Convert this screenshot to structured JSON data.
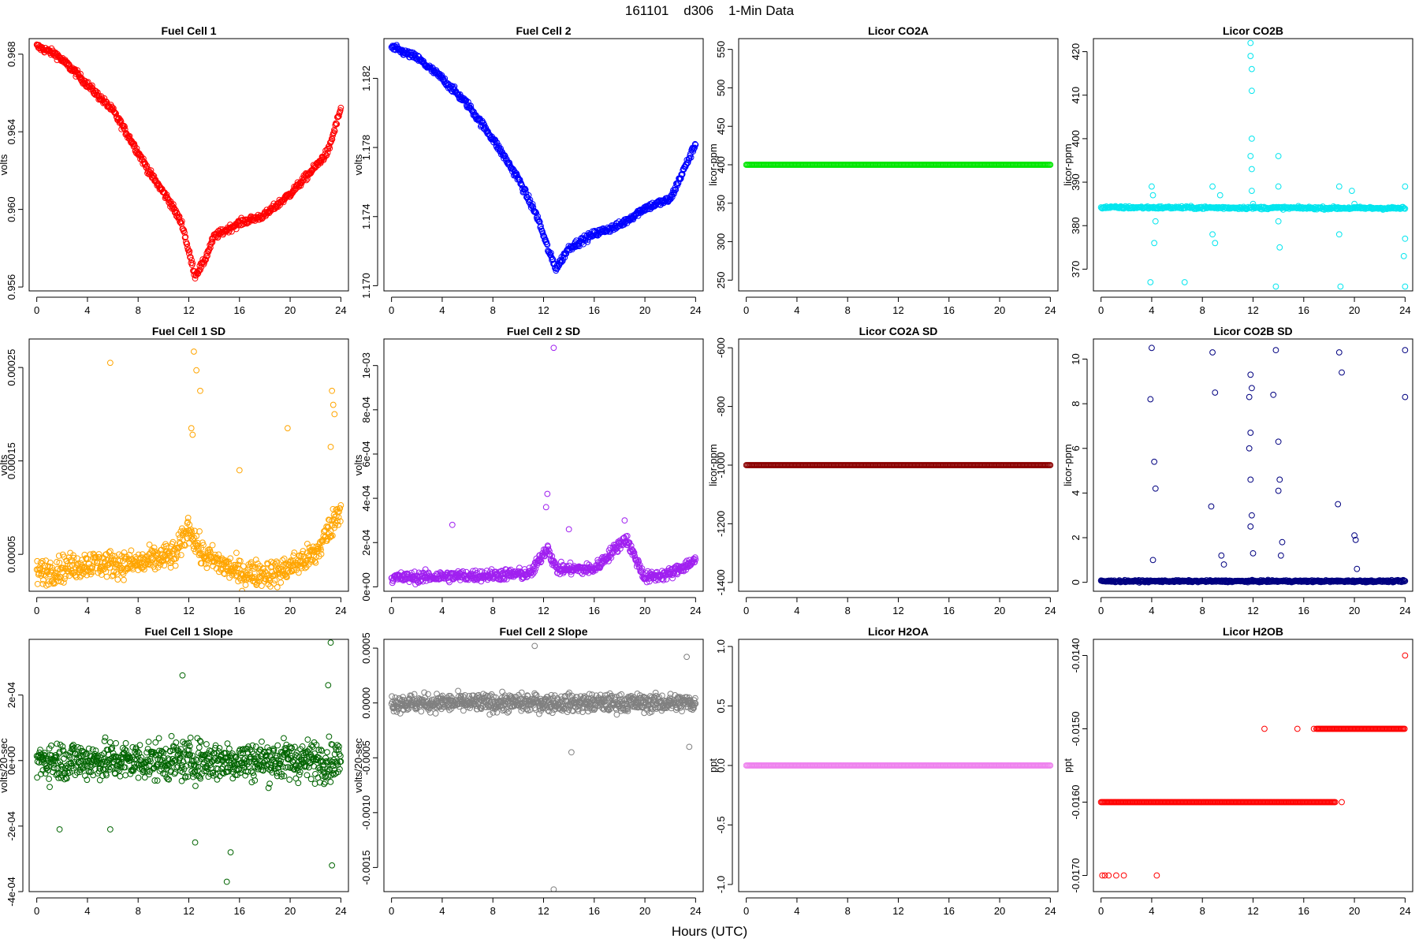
{
  "figure": {
    "title": "161101    d306    1-Min Data",
    "xlabel": "Hours (UTC)"
  },
  "chart_data": [
    {
      "id": "fc1",
      "type": "scatter",
      "title": "Fuel Cell 1",
      "xlabel": "",
      "ylabel": "volts",
      "color": "#ff0000",
      "xlim": [
        0,
        24
      ],
      "xticks": [
        0,
        4,
        8,
        12,
        16,
        20,
        24
      ],
      "ylim": [
        0.9558,
        0.9688
      ],
      "yticks": [
        0.956,
        0.96,
        0.964,
        0.968
      ],
      "ytick_labels": [
        "0.956",
        "0.960",
        "0.964",
        "0.968"
      ],
      "trend": [
        [
          0,
          0.9684
        ],
        [
          1.5,
          0.968
        ],
        [
          3,
          0.9671
        ],
        [
          4.5,
          0.9661
        ],
        [
          6,
          0.9651
        ],
        [
          7.5,
          0.9635
        ],
        [
          9,
          0.9618
        ],
        [
          10.5,
          0.9604
        ],
        [
          11.5,
          0.9592
        ],
        [
          12,
          0.9578
        ],
        [
          12.5,
          0.9566
        ],
        [
          13.2,
          0.9573
        ],
        [
          14,
          0.9586
        ],
        [
          16,
          0.9593
        ],
        [
          18,
          0.9597
        ],
        [
          20,
          0.9608
        ],
        [
          22,
          0.9622
        ],
        [
          23,
          0.963
        ],
        [
          24,
          0.9652
        ]
      ],
      "noise": 0.00018,
      "npoints": 600
    },
    {
      "id": "fc2",
      "type": "scatter",
      "title": "Fuel Cell 2",
      "xlabel": "",
      "ylabel": "volts",
      "color": "#0000ff",
      "xlim": [
        0,
        24
      ],
      "xticks": [
        0,
        4,
        8,
        12,
        16,
        20,
        24
      ],
      "ylim": [
        1.1697,
        1.1843
      ],
      "yticks": [
        1.17,
        1.174,
        1.178,
        1.182
      ],
      "ytick_labels": [
        "1.170",
        "1.174",
        "1.178",
        "1.182"
      ],
      "trend": [
        [
          0,
          1.1838
        ],
        [
          2,
          1.1832
        ],
        [
          4,
          1.182
        ],
        [
          6,
          1.1805
        ],
        [
          8,
          1.1785
        ],
        [
          10,
          1.1762
        ],
        [
          11.5,
          1.174
        ],
        [
          12.5,
          1.1718
        ],
        [
          13,
          1.171
        ],
        [
          14,
          1.1722
        ],
        [
          16,
          1.173
        ],
        [
          18,
          1.1735
        ],
        [
          20,
          1.1745
        ],
        [
          22,
          1.175
        ],
        [
          24,
          1.1782
        ]
      ],
      "noise": 0.0002,
      "npoints": 600
    },
    {
      "id": "co2a",
      "type": "scatter",
      "title": "Licor CO2A",
      "xlabel": "",
      "ylabel": "licor-ppm",
      "color": "#00e600",
      "xlim": [
        0,
        24
      ],
      "xticks": [
        0,
        4,
        8,
        12,
        16,
        20,
        24
      ],
      "ylim": [
        236,
        564
      ],
      "yticks": [
        250,
        300,
        350,
        400,
        450,
        500,
        550
      ],
      "ytick_labels": [
        "250",
        "300",
        "350",
        "400",
        "450",
        "500",
        "550"
      ],
      "trend": [
        [
          0,
          400
        ],
        [
          24,
          400
        ]
      ],
      "noise": 0,
      "npoints": 300
    },
    {
      "id": "co2b",
      "type": "scatter",
      "title": "Licor CO2B",
      "xlabel": "",
      "ylabel": "licor-ppm",
      "color": "#00e5ee",
      "xlim": [
        0,
        24
      ],
      "xticks": [
        0,
        4,
        8,
        12,
        16,
        20,
        24
      ],
      "ylim": [
        365,
        423
      ],
      "yticks": [
        370,
        380,
        390,
        400,
        410,
        420
      ],
      "ytick_labels": [
        "370",
        "380",
        "390",
        "400",
        "410",
        "420"
      ],
      "trend": [
        [
          0,
          384.2
        ],
        [
          24,
          384
        ]
      ],
      "noise": 0.3,
      "npoints": 400,
      "extra": [
        [
          3.9,
          367
        ],
        [
          4,
          389
        ],
        [
          4.1,
          387
        ],
        [
          4.2,
          376
        ],
        [
          4.3,
          381
        ],
        [
          6.6,
          367
        ],
        [
          8.8,
          389
        ],
        [
          8.8,
          378
        ],
        [
          9,
          376
        ],
        [
          9.4,
          387
        ],
        [
          11.8,
          422
        ],
        [
          11.8,
          419
        ],
        [
          11.9,
          416
        ],
        [
          11.9,
          411
        ],
        [
          11.9,
          400
        ],
        [
          11.8,
          396
        ],
        [
          11.9,
          393
        ],
        [
          11.9,
          388
        ],
        [
          12,
          385
        ],
        [
          14,
          396
        ],
        [
          14,
          389
        ],
        [
          14,
          381
        ],
        [
          14.1,
          375
        ],
        [
          13.8,
          366
        ],
        [
          18.8,
          389
        ],
        [
          18.8,
          378
        ],
        [
          18.9,
          366
        ],
        [
          19.8,
          388
        ],
        [
          20,
          385
        ],
        [
          24,
          389
        ],
        [
          24,
          377
        ],
        [
          23.9,
          373
        ],
        [
          24,
          366
        ]
      ]
    },
    {
      "id": "fc1sd",
      "type": "scatter",
      "title": "Fuel Cell 1 SD",
      "xlabel": "",
      "ylabel": "volts",
      "color": "#ffa500",
      "xlim": [
        0,
        24
      ],
      "xticks": [
        0,
        4,
        8,
        12,
        16,
        20,
        24
      ],
      "ylim": [
        1.05e-05,
        0.0002805
      ],
      "yticks": [
        5e-05,
        0.00015,
        0.00025
      ],
      "ytick_labels": [
        "0.00005",
        "0.00015",
        "0.00025"
      ],
      "trend": [
        [
          0,
          3e-05
        ],
        [
          4,
          4e-05
        ],
        [
          8,
          4e-05
        ],
        [
          11,
          5e-05
        ],
        [
          12,
          8e-05
        ],
        [
          13,
          5e-05
        ],
        [
          16,
          3e-05
        ],
        [
          19,
          3e-05
        ],
        [
          22,
          5e-05
        ],
        [
          24,
          0.0001
        ]
      ],
      "noise": 1.4e-05,
      "npoints": 700,
      "extra": [
        [
          5.8,
          0.000255
        ],
        [
          12.4,
          0.000267
        ],
        [
          12.6,
          0.000247
        ],
        [
          12.9,
          0.000225
        ],
        [
          12.2,
          0.000185
        ],
        [
          12.3,
          0.000178
        ],
        [
          16,
          0.00014
        ],
        [
          19.8,
          0.000185
        ],
        [
          23.3,
          0.000225
        ],
        [
          23.4,
          0.00021
        ],
        [
          23.5,
          0.0002
        ],
        [
          23.2,
          0.000165
        ]
      ]
    },
    {
      "id": "fc2sd",
      "type": "scatter",
      "title": "Fuel Cell 2 SD",
      "xlabel": "",
      "ylabel": "volts",
      "color": "#a020f0",
      "xlim": [
        0,
        24
      ],
      "xticks": [
        0,
        4,
        8,
        12,
        16,
        20,
        24
      ],
      "ylim": [
        -2e-05,
        0.00112
      ],
      "yticks": [
        0,
        0.0002,
        0.0004,
        0.0006,
        0.0008,
        0.001
      ],
      "ytick_labels": [
        "0e+00",
        "2e-04",
        "4e-04",
        "6e-04",
        "8e-04",
        "1e-03"
      ],
      "trend": [
        [
          0,
          4e-05
        ],
        [
          6,
          5e-05
        ],
        [
          11,
          6e-05
        ],
        [
          12.3,
          0.00018
        ],
        [
          13,
          8e-05
        ],
        [
          16,
          8e-05
        ],
        [
          18.5,
          0.00022
        ],
        [
          20,
          4e-05
        ],
        [
          22,
          6e-05
        ],
        [
          24,
          0.00012
        ]
      ],
      "noise": 2.5e-05,
      "npoints": 700,
      "extra": [
        [
          12.8,
          0.00108
        ],
        [
          12.3,
          0.00042
        ],
        [
          12.2,
          0.00036
        ],
        [
          4.8,
          0.00028
        ],
        [
          14,
          0.00026
        ],
        [
          18.4,
          0.0003
        ]
      ]
    },
    {
      "id": "co2asd",
      "type": "scatter",
      "title": "Licor CO2A SD",
      "xlabel": "",
      "ylabel": "licor-ppm",
      "color": "#8b0000",
      "xlim": [
        0,
        24
      ],
      "xticks": [
        0,
        4,
        8,
        12,
        16,
        20,
        24
      ],
      "ylim": [
        -1430,
        -570
      ],
      "yticks": [
        -1400,
        -1200,
        -1000,
        -800,
        -600
      ],
      "ytick_labels": [
        "-1400",
        "-1200",
        "-1000",
        "-800",
        "-600"
      ],
      "trend": [
        [
          0,
          -1000
        ],
        [
          24,
          -1000
        ]
      ],
      "noise": 0,
      "npoints": 300
    },
    {
      "id": "co2bsd",
      "type": "scatter",
      "title": "Licor CO2B SD",
      "xlabel": "",
      "ylabel": "licor-ppm",
      "color": "#000080",
      "xlim": [
        0,
        24
      ],
      "xticks": [
        0,
        4,
        8,
        12,
        16,
        20,
        24
      ],
      "ylim": [
        -0.4,
        10.9
      ],
      "yticks": [
        0,
        2,
        4,
        6,
        8,
        10
      ],
      "ytick_labels": [
        "0",
        "2",
        "4",
        "6",
        "8",
        "10"
      ],
      "trend": [
        [
          0,
          0.05
        ],
        [
          24,
          0.05
        ]
      ],
      "noise": 0.04,
      "npoints": 500,
      "extra": [
        [
          3.9,
          8.2
        ],
        [
          4,
          10.5
        ],
        [
          4.2,
          5.4
        ],
        [
          4.3,
          4.2
        ],
        [
          4.1,
          1.0
        ],
        [
          8.8,
          10.3
        ],
        [
          9,
          8.5
        ],
        [
          8.7,
          3.4
        ],
        [
          9.5,
          1.2
        ],
        [
          9.7,
          0.8
        ],
        [
          11.8,
          9.3
        ],
        [
          11.9,
          8.7
        ],
        [
          11.7,
          8.3
        ],
        [
          11.8,
          6.7
        ],
        [
          11.7,
          6.0
        ],
        [
          11.8,
          4.6
        ],
        [
          11.9,
          3.0
        ],
        [
          11.8,
          2.5
        ],
        [
          12,
          1.3
        ],
        [
          13.8,
          10.4
        ],
        [
          13.6,
          8.4
        ],
        [
          14,
          6.3
        ],
        [
          14.1,
          4.6
        ],
        [
          14,
          4.1
        ],
        [
          14.3,
          1.8
        ],
        [
          14.2,
          1.2
        ],
        [
          18.8,
          10.3
        ],
        [
          19,
          9.4
        ],
        [
          18.7,
          3.5
        ],
        [
          20,
          2.1
        ],
        [
          20.1,
          1.9
        ],
        [
          20.2,
          0.6
        ],
        [
          24,
          10.4
        ],
        [
          24,
          8.3
        ]
      ]
    },
    {
      "id": "fc1slope",
      "type": "scatter",
      "title": "Fuel Cell 1 Slope",
      "xlabel": "",
      "ylabel": "volts/20-sec",
      "color": "#006400",
      "xlim": [
        0,
        24
      ],
      "xticks": [
        0,
        4,
        8,
        12,
        16,
        20,
        24
      ],
      "ylim": [
        -0.0004,
        0.00037
      ],
      "yticks": [
        -0.0004,
        -0.0002,
        0,
        0.0002
      ],
      "ytick_labels": [
        "-4e-04",
        "-2e-04",
        "0e+00",
        "2e-04"
      ],
      "trend": [
        [
          0,
          0
        ],
        [
          24,
          0
        ]
      ],
      "noise": 6e-05,
      "npoints": 800,
      "extra": [
        [
          23.2,
          0.00036
        ],
        [
          23,
          0.00023
        ],
        [
          23.3,
          -0.00032
        ],
        [
          15.3,
          -0.00028
        ],
        [
          15,
          -0.00037
        ],
        [
          12.5,
          -0.00025
        ],
        [
          11.5,
          0.00026
        ],
        [
          5.8,
          -0.00021
        ],
        [
          1.8,
          -0.00021
        ]
      ]
    },
    {
      "id": "fc2slope",
      "type": "scatter",
      "title": "Fuel Cell 2 Slope",
      "xlabel": "",
      "ylabel": "volts/20-sec",
      "color": "#808080",
      "xlim": [
        0,
        24
      ],
      "xticks": [
        0,
        4,
        8,
        12,
        16,
        20,
        24
      ],
      "ylim": [
        -0.00172,
        0.00058
      ],
      "yticks": [
        -0.0015,
        -0.001,
        -0.0005,
        0,
        0.0005
      ],
      "ytick_labels": [
        "-0.0015",
        "-0.0010",
        "-0.0005",
        "0.0000",
        "0.0005"
      ],
      "trend": [
        [
          0,
          0
        ],
        [
          24,
          0
        ]
      ],
      "noise": 8e-05,
      "npoints": 800,
      "extra": [
        [
          11.3,
          0.00052
        ],
        [
          12.8,
          -0.0017
        ],
        [
          23.3,
          0.00042
        ],
        [
          23.5,
          -0.0004
        ],
        [
          14.2,
          -0.00045
        ]
      ]
    },
    {
      "id": "h2oa",
      "type": "scatter",
      "title": "Licor H2OA",
      "xlabel": "",
      "ylabel": "ppt",
      "color": "#ee82ee",
      "xlim": [
        0,
        24
      ],
      "xticks": [
        0,
        4,
        8,
        12,
        16,
        20,
        24
      ],
      "ylim": [
        -1.06,
        1.06
      ],
      "yticks": [
        -1,
        -0.5,
        0,
        0.5,
        1
      ],
      "ytick_labels": [
        "-1.0",
        "-0.5",
        "0.0",
        "0.5",
        "1.0"
      ],
      "trend": [
        [
          0,
          0
        ],
        [
          24,
          0
        ]
      ],
      "noise": 0,
      "npoints": 300
    },
    {
      "id": "h2ob",
      "type": "scatter",
      "title": "Licor H2OB",
      "xlabel": "",
      "ylabel": "ppt",
      "color": "#ff0000",
      "xlim": [
        0,
        24
      ],
      "xticks": [
        0,
        4,
        8,
        12,
        16,
        20,
        24
      ],
      "ylim": [
        -0.01722,
        -0.01378
      ],
      "yticks": [
        -0.017,
        -0.016,
        -0.015,
        -0.014
      ],
      "ytick_labels": [
        "-0.0170",
        "-0.0160",
        "-0.0150",
        "-0.0140"
      ],
      "trend": [],
      "noise": 0,
      "npoints": 0,
      "extra": [
        [
          0.1,
          -0.017
        ],
        [
          0.3,
          -0.017
        ],
        [
          0.6,
          -0.017
        ],
        [
          1.2,
          -0.017
        ],
        [
          1.8,
          -0.017
        ],
        [
          4.4,
          -0.017
        ],
        [
          12.9,
          -0.015
        ],
        [
          15.5,
          -0.015
        ],
        [
          16.8,
          -0.015
        ],
        [
          19.0,
          -0.016
        ],
        [
          24,
          -0.014
        ]
      ],
      "segments": [
        {
          "x0": 0,
          "x1": 18.5,
          "y": -0.016
        },
        {
          "x0": 17,
          "x1": 24,
          "y": -0.015
        }
      ]
    }
  ]
}
